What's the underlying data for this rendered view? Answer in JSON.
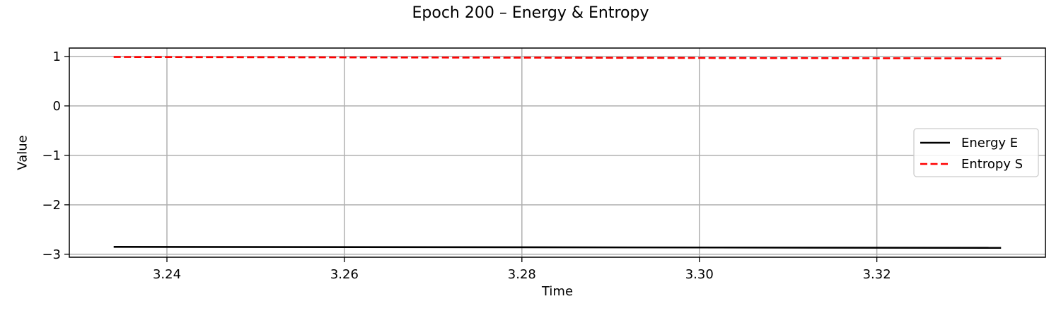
{
  "chart_data": {
    "type": "line",
    "title": "Epoch 200 – Energy & Entropy",
    "xlabel": "Time",
    "ylabel": "Value",
    "xlim": [
      3.229,
      3.339
    ],
    "ylim": [
      -3.06,
      1.17
    ],
    "xticks": [
      3.24,
      3.26,
      3.28,
      3.3,
      3.32
    ],
    "xtick_labels": [
      "3.24",
      "3.26",
      "3.28",
      "3.30",
      "3.32"
    ],
    "yticks": [
      1,
      0,
      -1,
      -2,
      -3
    ],
    "ytick_labels": [
      "1",
      "0",
      "−1",
      "−2",
      "−3"
    ],
    "grid": true,
    "legend_position": "center-right",
    "series": [
      {
        "name": "Energy E",
        "color": "#000000",
        "line_style": "solid",
        "x": [
          3.234,
          3.334
        ],
        "y": [
          -2.85,
          -2.87
        ]
      },
      {
        "name": "Entropy S",
        "color": "#ff0000",
        "line_style": "dashed",
        "x": [
          3.234,
          3.334
        ],
        "y": [
          0.99,
          0.96
        ]
      }
    ]
  }
}
